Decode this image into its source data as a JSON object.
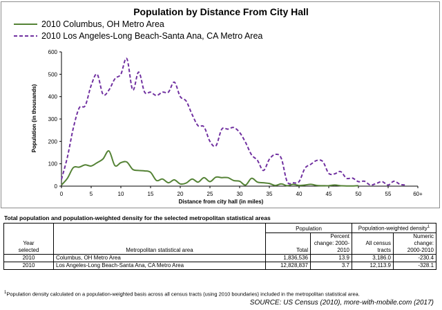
{
  "chart_data": {
    "type": "line",
    "title": "Population by Distance From City Hall",
    "xlabel": "Distance from city hall (in miles)",
    "ylabel": "Population (in thousands)",
    "xlim": [
      0,
      60
    ],
    "ylim": [
      0,
      600
    ],
    "x_ticks": [
      "0",
      "5",
      "10",
      "15",
      "20",
      "25",
      "30",
      "35",
      "40",
      "45",
      "50",
      "55",
      "60+"
    ],
    "y_ticks": [
      "0",
      "100",
      "200",
      "300",
      "400",
      "500",
      "600"
    ],
    "grid": false,
    "legend_position": "top-left",
    "series": [
      {
        "name": "2010 Columbus, OH Metro Area",
        "color": "#548235",
        "style": "solid",
        "x": [
          0,
          1,
          2,
          3,
          4,
          5,
          6,
          7,
          8,
          9,
          10,
          11,
          12,
          13,
          14,
          15,
          16,
          17,
          18,
          19,
          20,
          21,
          22,
          23,
          24,
          25,
          26,
          27,
          28,
          29,
          30,
          31,
          32,
          33,
          34,
          35,
          36,
          37,
          38,
          39,
          40,
          41,
          42,
          43,
          44,
          45,
          46,
          47,
          48,
          49,
          50
        ],
        "y": [
          5,
          35,
          83,
          85,
          95,
          90,
          105,
          122,
          157,
          92,
          105,
          108,
          75,
          70,
          68,
          62,
          25,
          32,
          15,
          28,
          10,
          14,
          32,
          18,
          38,
          20,
          40,
          38,
          38,
          25,
          22,
          5,
          35,
          18,
          15,
          12,
          3,
          10,
          2,
          8,
          3,
          5,
          8,
          3,
          2,
          2,
          5,
          2,
          1,
          1,
          2
        ]
      },
      {
        "name": "2010 Los Angeles-Long Beach-Santa Ana, CA Metro Area",
        "color": "#7030a0",
        "style": "dashed",
        "x": [
          0,
          1,
          2,
          3,
          4,
          5,
          6,
          7,
          8,
          9,
          10,
          11,
          12,
          13,
          14,
          15,
          16,
          17,
          18,
          19,
          20,
          21,
          22,
          23,
          24,
          25,
          26,
          27,
          28,
          29,
          30,
          31,
          32,
          33,
          34,
          35,
          36,
          37,
          38,
          39,
          40,
          41,
          42,
          43,
          44,
          45,
          46,
          47,
          48,
          49,
          50,
          51,
          52,
          53,
          54,
          55,
          56,
          57,
          58
        ],
        "y": [
          30,
          130,
          260,
          350,
          360,
          450,
          500,
          410,
          430,
          480,
          500,
          570,
          430,
          510,
          420,
          420,
          405,
          420,
          420,
          465,
          400,
          380,
          320,
          270,
          265,
          200,
          180,
          255,
          255,
          262,
          240,
          195,
          140,
          115,
          70,
          120,
          142,
          125,
          20,
          15,
          20,
          80,
          98,
          115,
          110,
          57,
          55,
          65,
          35,
          36,
          20,
          22,
          5,
          12,
          20,
          5,
          22,
          8,
          5
        ]
      }
    ]
  },
  "table": {
    "title": "Total population and population-weighted density for the selected metropolitan statistical areas",
    "headers": {
      "population_group": "Population",
      "density_group": "Population-weighted density",
      "density_sup": "1",
      "year_line1": "Year",
      "year_line2": "selected",
      "area": "Metropolitan statistical area",
      "total": "Total",
      "pct_line1": "Percent",
      "pct_line2": "change: 2000-",
      "pct_line3": "2010",
      "allct_line1": "All census",
      "allct_line2": "tracts",
      "numchg_line1": "Numeric",
      "numchg_line2": "change:",
      "numchg_line3": "2000-2010"
    },
    "rows": [
      {
        "year": "2010",
        "area": "Columbus, OH Metro Area",
        "total": "1,836,536",
        "pct": "13.9",
        "all_tracts": "3,186.0",
        "num_change": "-230.4"
      },
      {
        "year": "2010",
        "area": "Los Angeles-Long Beach-Santa Ana, CA Metro Area",
        "total": "12,828,837",
        "pct": "3.7",
        "all_tracts": "12,113.9",
        "num_change": "-328.1"
      }
    ],
    "footnote_sup": "1",
    "footnote": "Population density calculated on a population-weighted basis across all census tracts (using 2010 boundaries) included in the metropolitan statistical area."
  },
  "source": "SOURCE: US Census (2010), more-with-mobile.com (2017)"
}
